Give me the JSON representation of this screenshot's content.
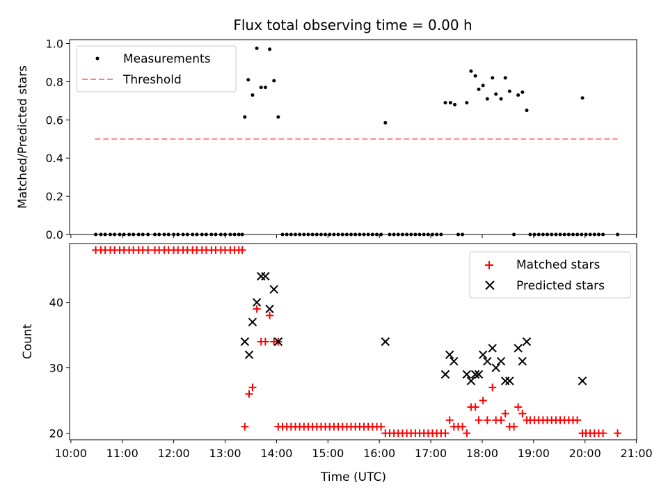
{
  "title": "Flux total observing time = 0.00 h",
  "x_ticks": [
    "10:00",
    "11:00",
    "12:00",
    "13:00",
    "14:00",
    "15:00",
    "16:00",
    "17:00",
    "18:00",
    "19:00",
    "20:00",
    "21:00"
  ],
  "xlabel": "Time (UTC)",
  "chart_data": [
    {
      "type": "scatter",
      "ylabel": "Matched/Predicted stars",
      "xlim": [
        "10:00",
        "21:00"
      ],
      "ylim": [
        0,
        1.02
      ],
      "y_ticks": [
        "0.0",
        "0.2",
        "0.4",
        "0.6",
        "0.8",
        "1.0"
      ],
      "legend_position": "top-left",
      "series": [
        {
          "name": "Measurements",
          "color": "#000000",
          "marker": "dot",
          "points": [
            [
              "10:29",
              0
            ],
            [
              "10:35",
              0
            ],
            [
              "10:40",
              0
            ],
            [
              "10:46",
              0
            ],
            [
              "10:51",
              0
            ],
            [
              "10:57",
              0
            ],
            [
              "11:02",
              0
            ],
            [
              "11:08",
              0
            ],
            [
              "11:13",
              0
            ],
            [
              "11:19",
              0
            ],
            [
              "11:24",
              0
            ],
            [
              "11:30",
              0
            ],
            [
              "11:38",
              0
            ],
            [
              "11:43",
              0
            ],
            [
              "11:49",
              0
            ],
            [
              "11:54",
              0
            ],
            [
              "12:00",
              0
            ],
            [
              "12:05",
              0
            ],
            [
              "12:11",
              0
            ],
            [
              "12:16",
              0
            ],
            [
              "12:22",
              0
            ],
            [
              "12:27",
              0
            ],
            [
              "12:33",
              0
            ],
            [
              "12:38",
              0
            ],
            [
              "12:44",
              0
            ],
            [
              "12:49",
              0
            ],
            [
              "12:55",
              0
            ],
            [
              "13:00",
              0
            ],
            [
              "13:06",
              0
            ],
            [
              "13:11",
              0
            ],
            [
              "13:16",
              0
            ],
            [
              "13:20",
              0
            ],
            [
              "13:23",
              0.615
            ],
            [
              "13:27",
              0.81
            ],
            [
              "13:32",
              0.73
            ],
            [
              "13:37",
              0.975
            ],
            [
              "13:42",
              0.77
            ],
            [
              "13:47",
              0.77
            ],
            [
              "13:52",
              0.97
            ],
            [
              "13:57",
              0.805
            ],
            [
              "14:02",
              0.615
            ],
            [
              "14:07",
              0
            ],
            [
              "14:12",
              0
            ],
            [
              "14:17",
              0
            ],
            [
              "14:22",
              0
            ],
            [
              "14:27",
              0
            ],
            [
              "14:32",
              0
            ],
            [
              "14:37",
              0
            ],
            [
              "14:42",
              0
            ],
            [
              "14:47",
              0
            ],
            [
              "14:52",
              0
            ],
            [
              "14:57",
              0
            ],
            [
              "15:02",
              0
            ],
            [
              "15:07",
              0
            ],
            [
              "15:12",
              0
            ],
            [
              "15:17",
              0
            ],
            [
              "15:22",
              0
            ],
            [
              "15:27",
              0
            ],
            [
              "15:32",
              0
            ],
            [
              "15:37",
              0
            ],
            [
              "15:42",
              0
            ],
            [
              "15:47",
              0
            ],
            [
              "15:52",
              0
            ],
            [
              "15:57",
              0
            ],
            [
              "16:02",
              0
            ],
            [
              "16:07",
              0.585
            ],
            [
              "16:12",
              0
            ],
            [
              "16:17",
              0
            ],
            [
              "16:22",
              0
            ],
            [
              "16:27",
              0
            ],
            [
              "16:32",
              0
            ],
            [
              "16:37",
              0
            ],
            [
              "16:42",
              0
            ],
            [
              "16:47",
              0
            ],
            [
              "16:52",
              0
            ],
            [
              "16:57",
              0
            ],
            [
              "17:02",
              0
            ],
            [
              "17:07",
              0
            ],
            [
              "17:12",
              0
            ],
            [
              "17:17",
              0.69
            ],
            [
              "17:23",
              0.69
            ],
            [
              "17:28",
              0.68
            ],
            [
              "17:32",
              0
            ],
            [
              "17:37",
              0
            ],
            [
              "17:42",
              0.69
            ],
            [
              "17:47",
              0.855
            ],
            [
              "17:52",
              0.83
            ],
            [
              "17:56",
              0.76
            ],
            [
              "18:01",
              0.78
            ],
            [
              "18:06",
              0.71
            ],
            [
              "18:12",
              0.82
            ],
            [
              "18:16",
              0.735
            ],
            [
              "18:22",
              0.71
            ],
            [
              "18:27",
              0.82
            ],
            [
              "18:32",
              0.75
            ],
            [
              "18:37",
              0
            ],
            [
              "18:42",
              0.73
            ],
            [
              "18:47",
              0.745
            ],
            [
              "18:52",
              0.65
            ],
            [
              "18:56",
              0
            ],
            [
              "19:01",
              0
            ],
            [
              "19:06",
              0
            ],
            [
              "19:11",
              0
            ],
            [
              "19:16",
              0
            ],
            [
              "19:21",
              0
            ],
            [
              "19:26",
              0
            ],
            [
              "19:31",
              0
            ],
            [
              "19:36",
              0
            ],
            [
              "19:41",
              0
            ],
            [
              "19:46",
              0
            ],
            [
              "19:51",
              0
            ],
            [
              "19:56",
              0
            ],
            [
              "19:57",
              0.715
            ],
            [
              "20:01",
              0
            ],
            [
              "20:06",
              0
            ],
            [
              "20:11",
              0
            ],
            [
              "20:16",
              0
            ],
            [
              "20:21",
              0
            ],
            [
              "20:38",
              0
            ]
          ]
        },
        {
          "name": "Threshold",
          "color": "#ff7f7f",
          "line_style": "dashed",
          "x": [
            "10:28",
            "20:38"
          ],
          "y": [
            0.5,
            0.5
          ]
        }
      ]
    },
    {
      "type": "scatter",
      "ylabel": "Count",
      "xlabel": "Time (UTC)",
      "xlim": [
        "10:00",
        "21:00"
      ],
      "ylim": [
        19,
        49
      ],
      "y_ticks": [
        "20",
        "30",
        "40"
      ],
      "legend_position": "top-right",
      "series": [
        {
          "name": "Matched stars",
          "color": "#ff0000",
          "marker": "plus",
          "points": [
            [
              "10:29",
              48
            ],
            [
              "10:35",
              48
            ],
            [
              "10:40",
              48
            ],
            [
              "10:46",
              48
            ],
            [
              "10:51",
              48
            ],
            [
              "10:57",
              48
            ],
            [
              "11:02",
              48
            ],
            [
              "11:08",
              48
            ],
            [
              "11:13",
              48
            ],
            [
              "11:19",
              48
            ],
            [
              "11:24",
              48
            ],
            [
              "11:30",
              48
            ],
            [
              "11:38",
              48
            ],
            [
              "11:43",
              48
            ],
            [
              "11:49",
              48
            ],
            [
              "11:54",
              48
            ],
            [
              "12:00",
              48
            ],
            [
              "12:05",
              48
            ],
            [
              "12:11",
              48
            ],
            [
              "12:16",
              48
            ],
            [
              "12:22",
              48
            ],
            [
              "12:27",
              48
            ],
            [
              "12:33",
              48
            ],
            [
              "12:38",
              48
            ],
            [
              "12:44",
              48
            ],
            [
              "12:49",
              48
            ],
            [
              "12:55",
              48
            ],
            [
              "13:00",
              48
            ],
            [
              "13:06",
              48
            ],
            [
              "13:11",
              48
            ],
            [
              "13:16",
              48
            ],
            [
              "13:20",
              48
            ],
            [
              "13:23",
              21
            ],
            [
              "13:28",
              26
            ],
            [
              "13:32",
              27
            ],
            [
              "13:37",
              39
            ],
            [
              "13:42",
              34
            ],
            [
              "13:47",
              34
            ],
            [
              "13:52",
              38
            ],
            [
              "13:57",
              34
            ],
            [
              "14:02",
              34
            ],
            [
              "14:02",
              21
            ],
            [
              "14:07",
              21
            ],
            [
              "14:12",
              21
            ],
            [
              "14:17",
              21
            ],
            [
              "14:22",
              21
            ],
            [
              "14:27",
              21
            ],
            [
              "14:32",
              21
            ],
            [
              "14:37",
              21
            ],
            [
              "14:42",
              21
            ],
            [
              "14:47",
              21
            ],
            [
              "14:52",
              21
            ],
            [
              "14:57",
              21
            ],
            [
              "15:02",
              21
            ],
            [
              "15:07",
              21
            ],
            [
              "15:12",
              21
            ],
            [
              "15:17",
              21
            ],
            [
              "15:22",
              21
            ],
            [
              "15:27",
              21
            ],
            [
              "15:32",
              21
            ],
            [
              "15:37",
              21
            ],
            [
              "15:42",
              21
            ],
            [
              "15:47",
              21
            ],
            [
              "15:52",
              21
            ],
            [
              "15:57",
              21
            ],
            [
              "16:02",
              21
            ],
            [
              "16:07",
              20
            ],
            [
              "16:12",
              20
            ],
            [
              "16:17",
              20
            ],
            [
              "16:22",
              20
            ],
            [
              "16:27",
              20
            ],
            [
              "16:32",
              20
            ],
            [
              "16:37",
              20
            ],
            [
              "16:42",
              20
            ],
            [
              "16:47",
              20
            ],
            [
              "16:52",
              20
            ],
            [
              "16:57",
              20
            ],
            [
              "17:02",
              20
            ],
            [
              "17:07",
              20
            ],
            [
              "17:12",
              20
            ],
            [
              "17:17",
              20
            ],
            [
              "17:22",
              22
            ],
            [
              "17:27",
              21
            ],
            [
              "17:32",
              21
            ],
            [
              "17:37",
              21
            ],
            [
              "17:42",
              20
            ],
            [
              "17:47",
              24
            ],
            [
              "17:52",
              24
            ],
            [
              "17:56",
              22
            ],
            [
              "18:01",
              25
            ],
            [
              "18:06",
              22
            ],
            [
              "18:12",
              27
            ],
            [
              "18:16",
              22
            ],
            [
              "18:22",
              22
            ],
            [
              "18:27",
              23
            ],
            [
              "18:32",
              21
            ],
            [
              "18:37",
              21
            ],
            [
              "18:42",
              24
            ],
            [
              "18:47",
              23
            ],
            [
              "18:52",
              22
            ],
            [
              "18:56",
              22
            ],
            [
              "19:01",
              22
            ],
            [
              "19:06",
              22
            ],
            [
              "19:11",
              22
            ],
            [
              "19:16",
              22
            ],
            [
              "19:21",
              22
            ],
            [
              "19:26",
              22
            ],
            [
              "19:31",
              22
            ],
            [
              "19:36",
              22
            ],
            [
              "19:41",
              22
            ],
            [
              "19:46",
              22
            ],
            [
              "19:51",
              22
            ],
            [
              "19:57",
              20
            ],
            [
              "20:01",
              20
            ],
            [
              "20:06",
              20
            ],
            [
              "20:11",
              20
            ],
            [
              "20:16",
              20
            ],
            [
              "20:21",
              20
            ],
            [
              "20:38",
              20
            ]
          ]
        },
        {
          "name": "Predicted stars",
          "color": "#000000",
          "marker": "x",
          "points": [
            [
              "13:23",
              34
            ],
            [
              "13:28",
              32
            ],
            [
              "13:32",
              37
            ],
            [
              "13:37",
              40
            ],
            [
              "13:42",
              44
            ],
            [
              "13:47",
              44
            ],
            [
              "13:52",
              39
            ],
            [
              "13:57",
              42
            ],
            [
              "14:02",
              34
            ],
            [
              "16:07",
              34
            ],
            [
              "17:17",
              29
            ],
            [
              "17:22",
              32
            ],
            [
              "17:27",
              31
            ],
            [
              "17:42",
              29
            ],
            [
              "17:47",
              28
            ],
            [
              "17:52",
              29
            ],
            [
              "17:56",
              29
            ],
            [
              "18:01",
              32
            ],
            [
              "18:06",
              31
            ],
            [
              "18:12",
              33
            ],
            [
              "18:16",
              30
            ],
            [
              "18:22",
              31
            ],
            [
              "18:27",
              28
            ],
            [
              "18:32",
              28
            ],
            [
              "18:42",
              33
            ],
            [
              "18:47",
              31
            ],
            [
              "18:52",
              34
            ],
            [
              "19:57",
              28
            ]
          ]
        }
      ]
    }
  ]
}
